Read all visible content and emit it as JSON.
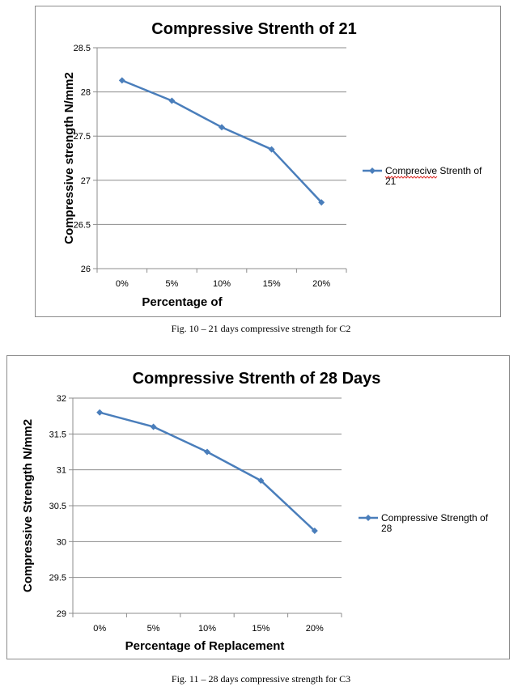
{
  "chart_data": [
    {
      "type": "line",
      "title": "Compressive Strenth of 21",
      "xlabel": "Percentage of",
      "ylabel": "Compressive strength N/mm2",
      "categories": [
        "0%",
        "5%",
        "10%",
        "15%",
        "20%"
      ],
      "series": [
        {
          "name": "Comprecive Strenth of 21",
          "values": [
            28.13,
            27.9,
            27.6,
            27.35,
            26.75
          ],
          "color": "#4a7ebb"
        }
      ],
      "ylim": [
        26,
        28.5
      ],
      "yticks": [
        26,
        26.5,
        27,
        27.5,
        28,
        28.5
      ],
      "grid": true,
      "legend": "right",
      "legend_lines": [
        "Comprecive Strenth of",
        "21"
      ],
      "caption": "Fig. 10 – 21 days compressive strength for C2"
    },
    {
      "type": "line",
      "title": "Compressive Strenth of 28 Days",
      "xlabel": "Percentage of Replacement",
      "ylabel": "Compressive Strength N/mm2",
      "categories": [
        "0%",
        "5%",
        "10%",
        "15%",
        "20%"
      ],
      "series": [
        {
          "name": "Compressive Strength of 28",
          "values": [
            31.8,
            31.6,
            31.25,
            30.85,
            30.15
          ],
          "color": "#4a7ebb"
        }
      ],
      "ylim": [
        29,
        32
      ],
      "yticks": [
        29,
        29.5,
        30,
        30.5,
        31,
        31.5,
        32
      ],
      "grid": true,
      "legend": "right",
      "legend_lines": [
        "Compressive Strength of",
        "28"
      ],
      "caption": "Fig. 11 – 28 days compressive strength for C3"
    }
  ]
}
